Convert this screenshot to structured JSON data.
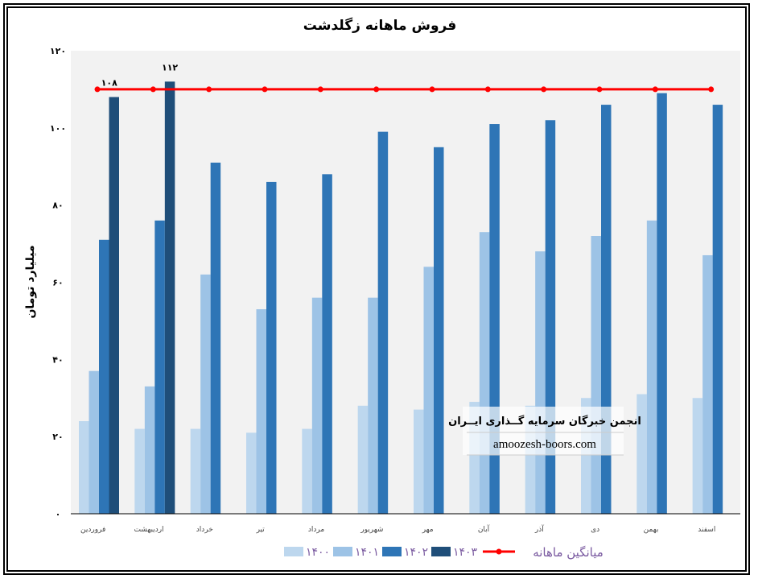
{
  "chart_data": {
    "type": "bar",
    "title": "فروش ماهانه زگلدشت",
    "ylabel": "میلیارد تومان",
    "xlabel": "",
    "ylim": [
      0,
      120
    ],
    "yticks": [
      "۰",
      "۲۰",
      "۴۰",
      "۶۰",
      "۸۰",
      "۱۰۰",
      "۱۲۰"
    ],
    "ytick_values": [
      0,
      20,
      40,
      60,
      80,
      100,
      120
    ],
    "categories": [
      "فروردین",
      "اردیبهشت",
      "خرداد",
      "تیر",
      "مرداد",
      "شهریور",
      "مهر",
      "آبان",
      "آذر",
      "دی",
      "بهمن",
      "اسفند"
    ],
    "series": [
      {
        "name": "۱۴۰۰",
        "color": "#bdd7ee",
        "values": [
          24,
          22,
          22,
          21,
          22,
          28,
          27,
          29,
          28,
          30,
          31,
          30
        ]
      },
      {
        "name": "۱۴۰۱",
        "color": "#9dc3e6",
        "values": [
          37,
          33,
          62,
          53,
          56,
          56,
          64,
          73,
          68,
          72,
          76,
          67
        ]
      },
      {
        "name": "۱۴۰۲",
        "color": "#2e75b6",
        "values": [
          71,
          76,
          91,
          86,
          88,
          99,
          95,
          101,
          102,
          106,
          109,
          106
        ]
      },
      {
        "name": "۱۴۰۳",
        "color": "#1f4e79",
        "values": [
          108,
          112,
          null,
          null,
          null,
          null,
          null,
          null,
          null,
          null,
          null,
          null
        ]
      }
    ],
    "line": {
      "name": "میانگین ماهانه",
      "color": "#ff0000",
      "value": 110
    },
    "data_labels": [
      {
        "category": "فروردین",
        "series": "۱۴۰۳",
        "text": "۱۰۸"
      },
      {
        "category": "اردیبهشت",
        "series": "۱۴۰۳",
        "text": "۱۱۲"
      }
    ],
    "legend_position": "bottom",
    "grid": false
  },
  "watermark": {
    "org": "انجمن خبرگان سرمایه گــذاری ایــران",
    "site": "amoozesh-boors.com"
  }
}
